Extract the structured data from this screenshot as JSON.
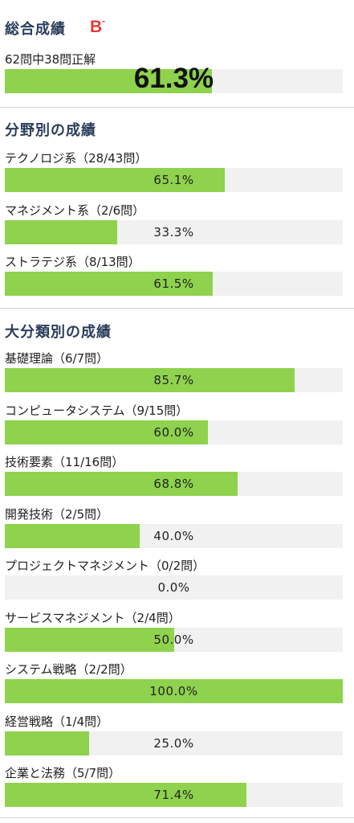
{
  "overall": {
    "title": "総合成績",
    "grade": "B",
    "grade_mark": "-",
    "summary": "62問中38問正解",
    "percent_label": "61.3%",
    "percent": 61.3
  },
  "field": {
    "title": "分野別の成績",
    "items": [
      {
        "label": "テクノロジ系（28/43問）",
        "percent_label": "65.1%",
        "percent": 65.1
      },
      {
        "label": "マネジメント系（2/6問）",
        "percent_label": "33.3%",
        "percent": 33.3
      },
      {
        "label": "ストラテジ系（8/13問）",
        "percent_label": "61.5%",
        "percent": 61.5
      }
    ]
  },
  "category": {
    "title": "大分類別の成績",
    "items": [
      {
        "label": "基礎理論（6/7問）",
        "percent_label": "85.7%",
        "percent": 85.7
      },
      {
        "label": "コンピュータシステム（9/15問）",
        "percent_label": "60.0%",
        "percent": 60.0
      },
      {
        "label": "技術要素（11/16問）",
        "percent_label": "68.8%",
        "percent": 68.8
      },
      {
        "label": "開発技術（2/5問）",
        "percent_label": "40.0%",
        "percent": 40.0
      },
      {
        "label": "プロジェクトマネジメント（0/2問）",
        "percent_label": "0.0%",
        "percent": 0.0
      },
      {
        "label": "サービスマネジメント（2/4問）",
        "percent_label": "50.0%",
        "percent": 50.0
      },
      {
        "label": "システム戦略（2/2問）",
        "percent_label": "100.0%",
        "percent": 100.0
      },
      {
        "label": "経営戦略（1/4問）",
        "percent_label": "25.0%",
        "percent": 25.0
      },
      {
        "label": "企業と法務（5/7問）",
        "percent_label": "71.4%",
        "percent": 71.4
      }
    ]
  },
  "colors": {
    "bar_fill": "#8ed24d",
    "bar_track": "#f1f1f1",
    "title": "#2b3d5c",
    "grade": "#e53b36"
  }
}
